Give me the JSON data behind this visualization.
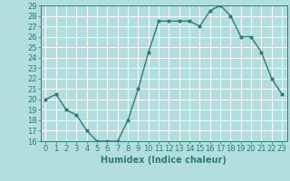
{
  "x": [
    0,
    1,
    2,
    3,
    4,
    5,
    6,
    7,
    8,
    9,
    10,
    11,
    12,
    13,
    14,
    15,
    16,
    17,
    18,
    19,
    20,
    21,
    22,
    23
  ],
  "y": [
    20,
    20.5,
    19,
    18.5,
    17,
    16,
    16,
    16,
    18,
    21,
    24.5,
    27.5,
    27.5,
    27.5,
    27.5,
    27,
    28.5,
    29,
    28,
    26,
    26,
    24.5,
    22,
    20.5
  ],
  "line_color": "#2e7d72",
  "marker_color": "#2e7d72",
  "bg_color": "#b2dede",
  "grid_color": "#ffffff",
  "xlabel": "Humidex (Indice chaleur)",
  "ylim": [
    16,
    29
  ],
  "xlim": [
    -0.5,
    23.5
  ],
  "yticks": [
    16,
    17,
    18,
    19,
    20,
    21,
    22,
    23,
    24,
    25,
    26,
    27,
    28,
    29
  ],
  "xticks": [
    0,
    1,
    2,
    3,
    4,
    5,
    6,
    7,
    8,
    9,
    10,
    11,
    12,
    13,
    14,
    15,
    16,
    17,
    18,
    19,
    20,
    21,
    22,
    23
  ],
  "xtick_labels": [
    "0",
    "1",
    "2",
    "3",
    "4",
    "5",
    "6",
    "7",
    "8",
    "9",
    "10",
    "11",
    "12",
    "13",
    "14",
    "15",
    "16",
    "17",
    "18",
    "19",
    "20",
    "21",
    "22",
    "23"
  ],
  "ytick_labels": [
    "16",
    "17",
    "18",
    "19",
    "20",
    "21",
    "22",
    "23",
    "24",
    "25",
    "26",
    "27",
    "28",
    "29"
  ],
  "tick_color": "#2e7d72",
  "label_fontsize": 7,
  "tick_fontsize": 6,
  "linewidth": 1.0,
  "markersize": 2.0
}
